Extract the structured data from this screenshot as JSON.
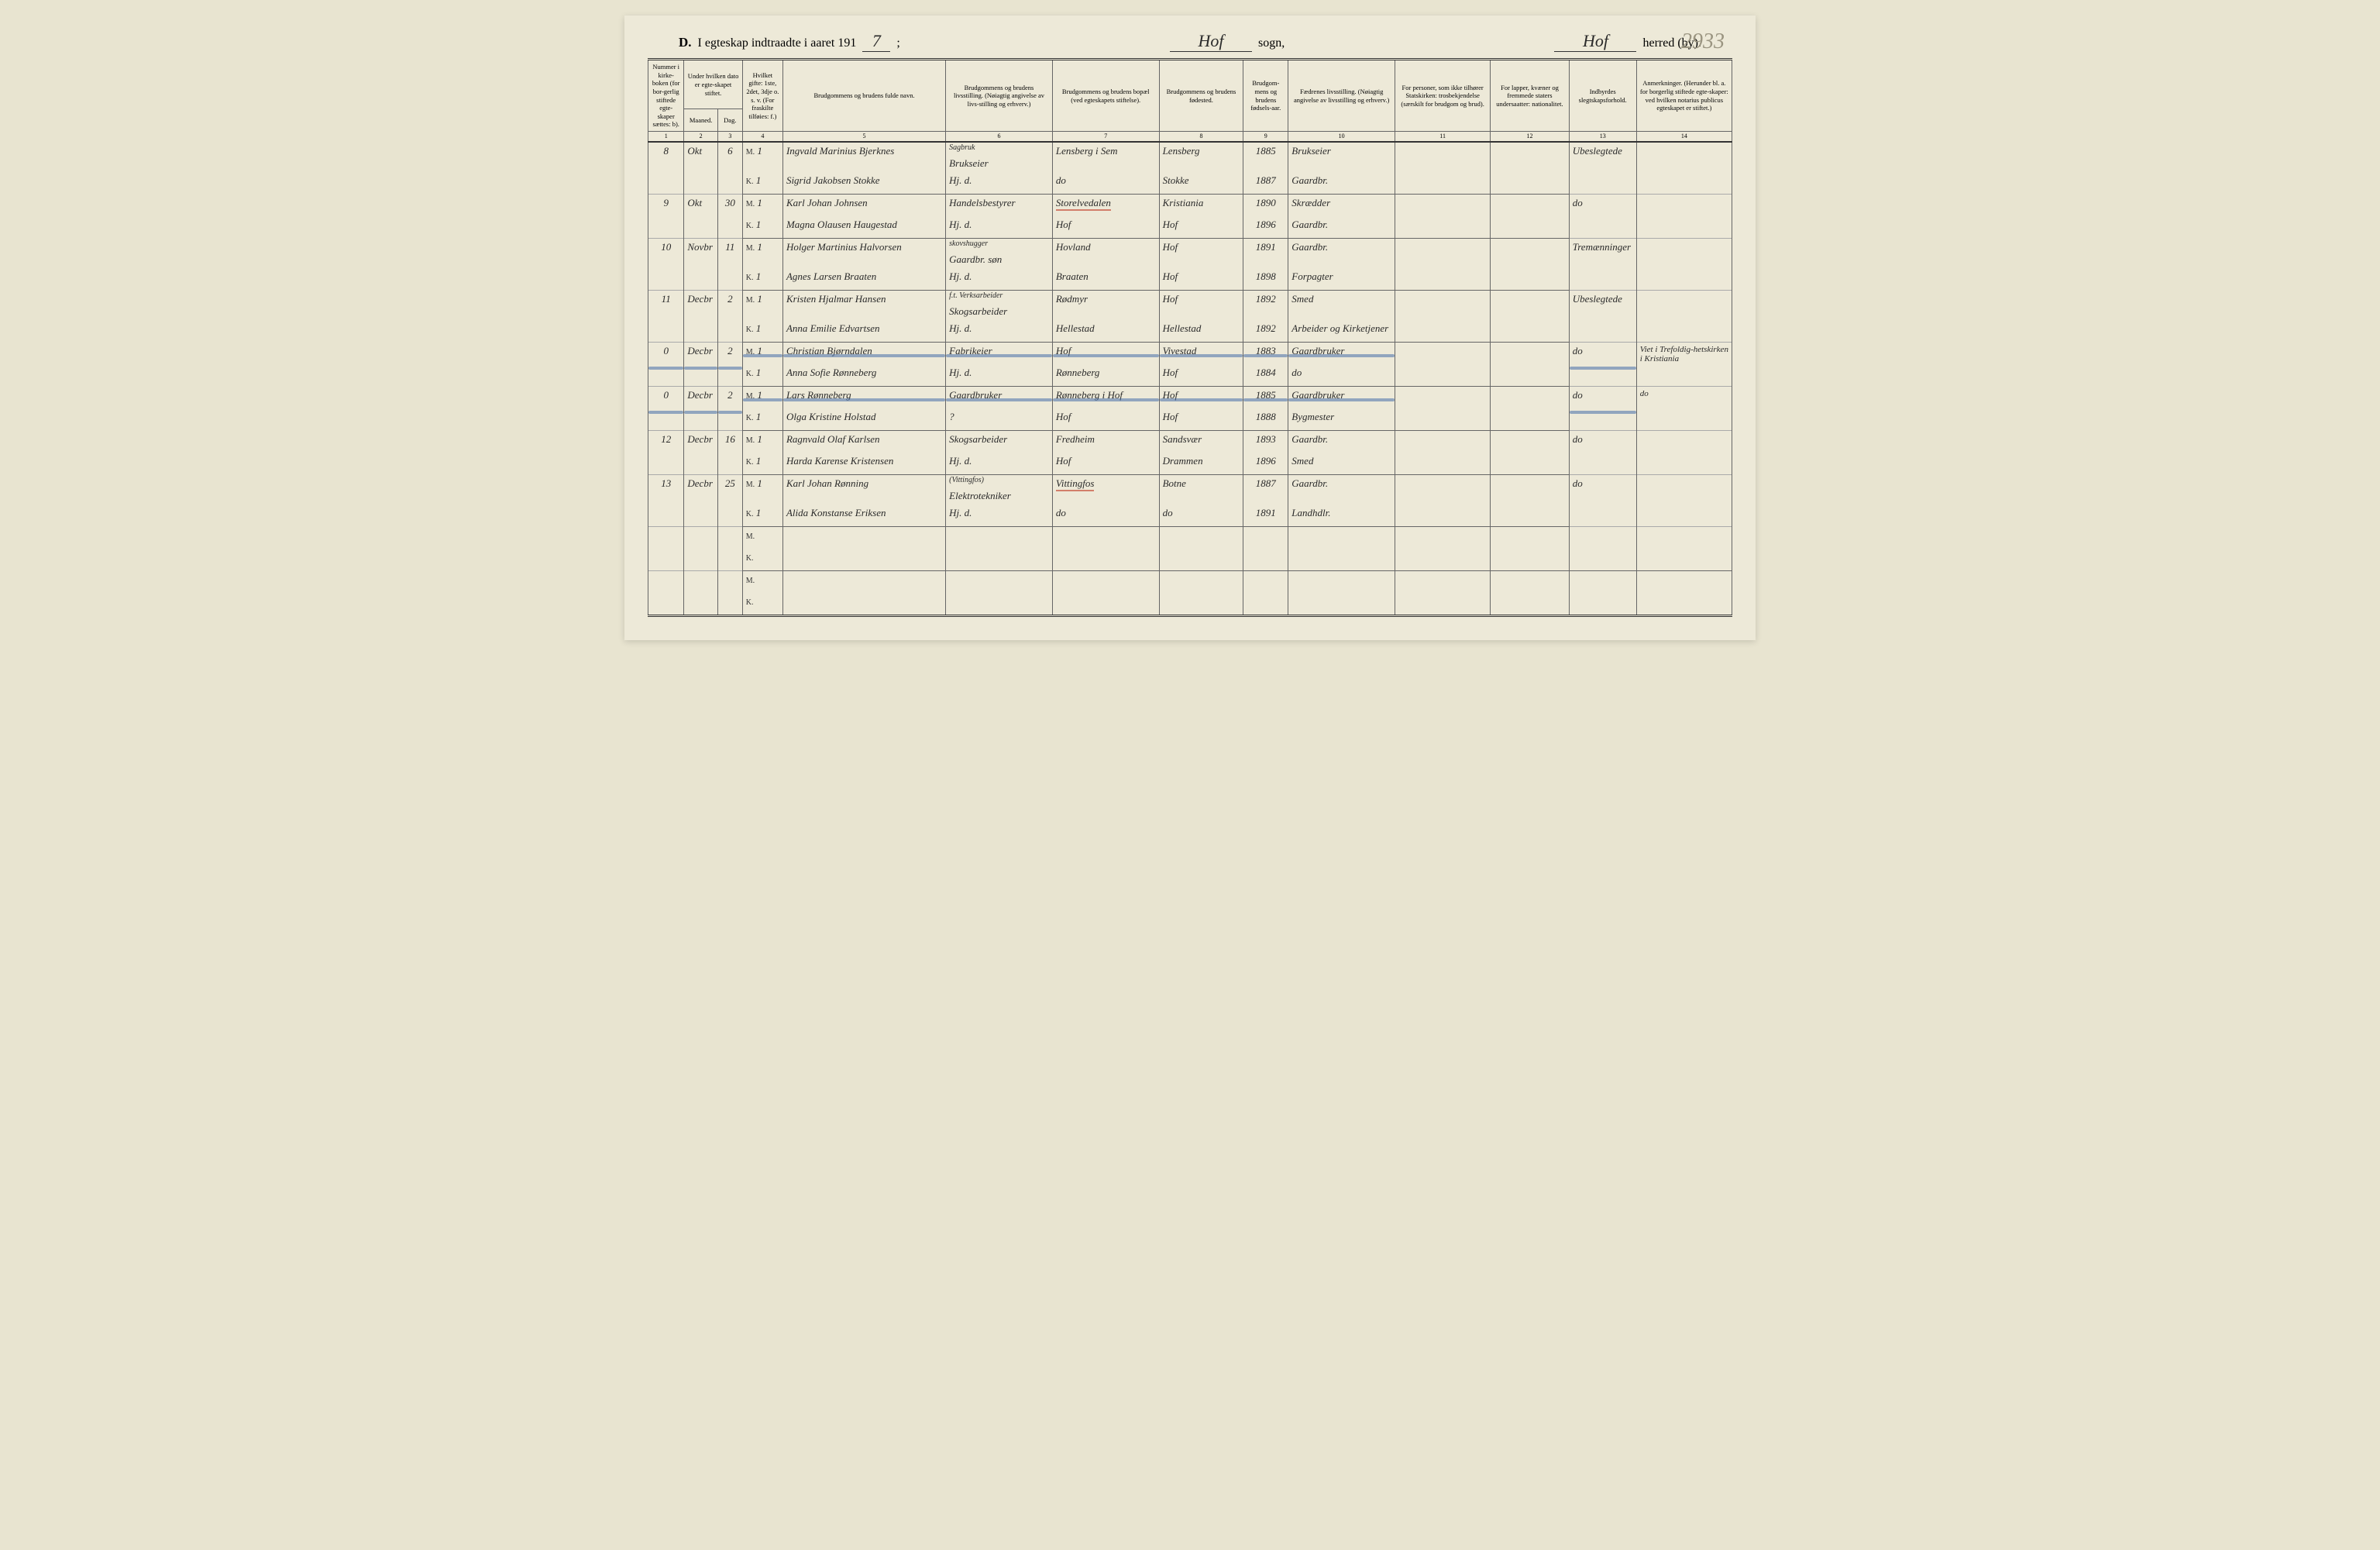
{
  "page_number_pencil": "2933",
  "title": {
    "prefix_letter": "D.",
    "printed_left": "I egteskap indtraadte i aaret 191",
    "year_digit_written": "7",
    "sogn_written": "Hof",
    "sogn_label": "sogn,",
    "herred_written": "Hof",
    "herred_label": "herred (by)."
  },
  "headers": {
    "c1": "Nummer i kirke-boken (for bor-gerlig stiftede egte-skaper sættes: b).",
    "c2_top": "Under hvilken dato er egte-skapet stiftet.",
    "c2a": "Maaned.",
    "c2b": "Dag.",
    "c4": "Hvilket gifte: 1ste, 2det, 3dje o. s. v. (For fraskilte tilføies: f.)",
    "c5": "Brudgommens og brudens fulde navn.",
    "c6": "Brudgommens og brudens livsstilling. (Nøiagtig angivelse av livs-stilling og erhverv.)",
    "c7": "Brudgommens og brudens bopæl (ved egteskapets stiftelse).",
    "c8": "Brudgommens og brudens fødested.",
    "c9": "Brudgom-mens og brudens fødsels-aar.",
    "c10": "Fædrenes livsstilling. (Nøiagtig angivelse av livsstilling og erhverv.)",
    "c11": "For personer, som ikke tilhører Statskirken: trosbekjendelse (særskilt for brudgom og brud).",
    "c12": "For lapper, kvæner og fremmede staters undersaatter: nationalitet.",
    "c13": "Indbyrdes slegtskapsforhold.",
    "c14": "Anmerkninger. (Herunder bl. a. for borgerlig stiftede egte-skaper: ved hvilken notarius publicus egteskapet er stiftet.)"
  },
  "colnums": [
    "1",
    "2",
    "3",
    "4",
    "5",
    "6",
    "7",
    "8",
    "9",
    "10",
    "11",
    "12",
    "13",
    "14"
  ],
  "rows": [
    {
      "num": "8",
      "month": "Okt",
      "day": "6",
      "m": {
        "gifte": "1",
        "navn": "Ingvald Marinius Bjerknes",
        "stilling": "Brukseier",
        "note6": "Sagbruk",
        "bopael": "Lensberg i Sem",
        "fodested": "Lensberg",
        "aar": "1885",
        "far": "Brukseier"
      },
      "k": {
        "gifte": "1",
        "navn": "Sigrid Jakobsen Stokke",
        "stilling": "Hj. d.",
        "bopael": "do",
        "fodested": "Stokke",
        "aar": "1887",
        "far": "Gaardbr."
      },
      "c13": "Ubeslegtede"
    },
    {
      "num": "9",
      "month": "Okt",
      "day": "30",
      "m": {
        "gifte": "1",
        "navn": "Karl Johan Johnsen",
        "stilling": "Handelsbestyrer",
        "bopael": "Storelvedalen",
        "bopael_red": true,
        "fodested": "Kristiania",
        "aar": "1890",
        "far": "Skrædder"
      },
      "k": {
        "gifte": "1",
        "navn": "Magna Olausen Haugestad",
        "stilling": "Hj. d.",
        "bopael": "Hof",
        "fodested": "Hof",
        "aar": "1896",
        "far": "Gaardbr."
      },
      "c13": "do"
    },
    {
      "num": "10",
      "month": "Novbr",
      "day": "11",
      "m": {
        "gifte": "1",
        "navn": "Holger Martinius Halvorsen",
        "stilling": "Gaardbr. søn",
        "note6": "skovshugger",
        "bopael": "Hovland",
        "fodested": "Hof",
        "aar": "1891",
        "far": "Gaardbr."
      },
      "k": {
        "gifte": "1",
        "navn": "Agnes Larsen Braaten",
        "stilling": "Hj. d.",
        "bopael": "Braaten",
        "fodested": "Hof",
        "aar": "1898",
        "far": "Forpagter"
      },
      "c13": "Tremænninger"
    },
    {
      "num": "11",
      "month": "Decbr",
      "day": "2",
      "m": {
        "gifte": "1",
        "navn": "Kristen Hjalmar Hansen",
        "stilling": "Skogsarbeider",
        "note6": "f.t. Verksarbeider",
        "bopael": "Rødmyr",
        "fodested": "Hof",
        "aar": "1892",
        "far": "Smed"
      },
      "k": {
        "gifte": "1",
        "navn": "Anna Emilie Edvartsen",
        "stilling": "Hj. d.",
        "bopael": "Hellestad",
        "fodested": "Hellestad",
        "aar": "1892",
        "far": "Arbeider og Kirketjener"
      },
      "c13": "Ubeslegtede"
    },
    {
      "struck": true,
      "num": "0",
      "month": "Decbr",
      "day": "2",
      "m": {
        "gifte": "1",
        "navn": "Christian Bjørndalen",
        "stilling": "Fabrikeier",
        "bopael": "Hof",
        "fodested": "Vivestad",
        "aar": "1883",
        "far": "Gaardbruker"
      },
      "k": {
        "gifte": "1",
        "navn": "Anna Sofie Rønneberg",
        "stilling": "Hj. d.",
        "bopael": "Rønneberg",
        "fodested": "Hof",
        "aar": "1884",
        "far": "do"
      },
      "c13": "do",
      "c14": "Viet i Trefoldig-hetskirken i Kristiania"
    },
    {
      "struck": true,
      "num": "0",
      "month": "Decbr",
      "day": "2",
      "m": {
        "gifte": "1",
        "navn": "Lars Rønneberg",
        "stilling": "Gaardbruker",
        "bopael": "Rønneberg i Hof",
        "fodested": "Hof",
        "aar": "1885",
        "far": "Gaardbruker"
      },
      "k": {
        "gifte": "1",
        "navn": "Olga Kristine Holstad",
        "stilling": "?",
        "bopael": "Hof",
        "fodested": "Hof",
        "aar": "1888",
        "far": "Bygmester"
      },
      "c13": "do",
      "c14": "do"
    },
    {
      "num": "12",
      "month": "Decbr",
      "day": "16",
      "m": {
        "gifte": "1",
        "navn": "Ragnvald Olaf Karlsen",
        "stilling": "Skogsarbeider",
        "bopael": "Fredheim",
        "fodested": "Sandsvær",
        "aar": "1893",
        "far": "Gaardbr."
      },
      "k": {
        "gifte": "1",
        "navn": "Harda Karense Kristensen",
        "stilling": "Hj. d.",
        "bopael": "Hof",
        "fodested": "Drammen",
        "aar": "1896",
        "far": "Smed"
      },
      "c13": "do"
    },
    {
      "num": "13",
      "month": "Decbr",
      "day": "25",
      "m": {
        "gifte": "1",
        "navn": "Karl Johan Rønning",
        "stilling": "Elektrotekniker",
        "note6": "(Vittingfos)",
        "bopael": "Vittingfos",
        "bopael_red": true,
        "fodested": "Botne",
        "aar": "1887",
        "far": "Gaardbr."
      },
      "k": {
        "gifte": "1",
        "navn": "Alida Konstanse Eriksen",
        "stilling": "Hj. d.",
        "bopael": "do",
        "fodested": "do",
        "aar": "1891",
        "far": "Landhdlr."
      },
      "c13": "do"
    },
    {
      "blank": true
    },
    {
      "blank": true
    }
  ]
}
